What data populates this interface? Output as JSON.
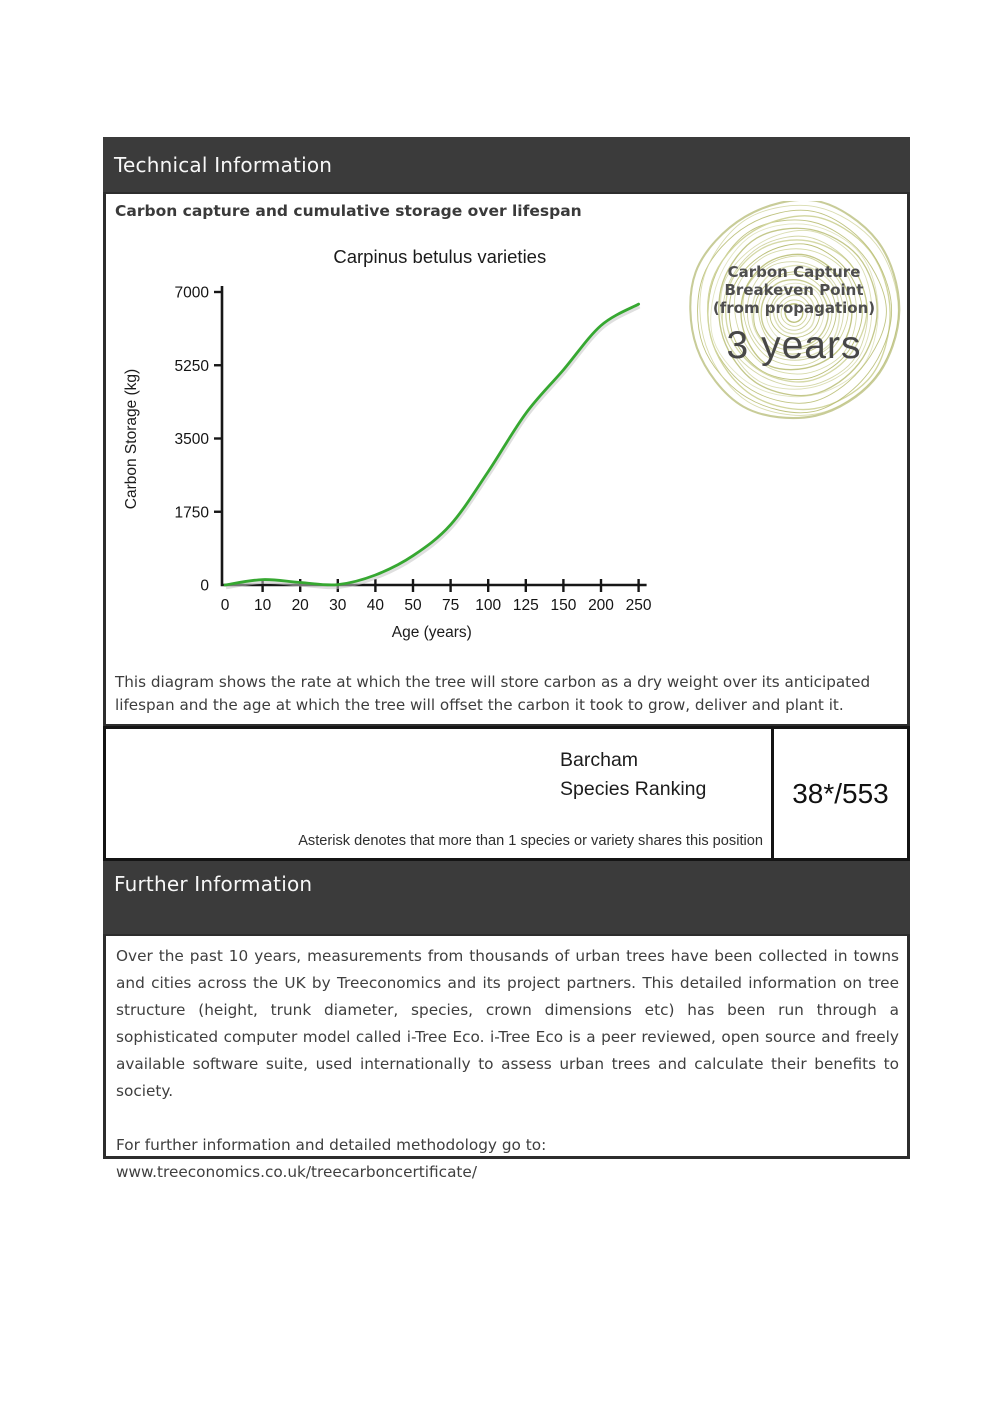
{
  "technical_section": {
    "title": "Technical Information",
    "bar_color": "#3b3b3b",
    "heading": "Carbon capture and cumulative storage over lifespan",
    "description": "This diagram shows the rate at which the tree will store carbon as a dry weight over its anticipated lifespan and the age at which the tree will offset the carbon it took to grow, deliver and plant it."
  },
  "chart_data": {
    "type": "line",
    "title": "Carpinus betulus varieties",
    "xlabel": "Age (years)",
    "ylabel": "Carbon Storage (kg)",
    "x_categories": [
      "0",
      "10",
      "20",
      "30",
      "40",
      "50",
      "75",
      "100",
      "125",
      "150",
      "200",
      "250"
    ],
    "x_spacing": "categorical-even",
    "y_ticks": [
      0,
      1750,
      3500,
      5250,
      7000
    ],
    "ylim": [
      0,
      7000
    ],
    "grid": false,
    "legend": "none",
    "series": [
      {
        "name": "Carpinus betulus varieties",
        "color": "#36a831",
        "values": [
          0,
          130,
          60,
          10,
          240,
          700,
          1440,
          2710,
          4100,
          5140,
          6200,
          6710
        ]
      }
    ]
  },
  "breakeven_badge": {
    "line1": "Carbon Capture",
    "line2": "Breakeven Point",
    "line3": "(from propagation)",
    "value": "3 years",
    "ring_color": "#b6bb6f",
    "ring_color_light": "#d0d49c"
  },
  "ranking": {
    "label_line1": "Barcham",
    "label_line2": "Species Ranking",
    "value": "38*/553",
    "footnote": "Asterisk denotes that more than 1 species or variety shares this position"
  },
  "further_section": {
    "title": "Further Information",
    "bar_color": "#3b3b3b",
    "paragraph": "Over the past 10 years, measurements from thousands of urban trees have been collected in towns and cities across the UK by Treeconomics and its project partners. This detailed information on tree structure (height, trunk diameter, species, crown dimensions etc) has been run through a sophisticated computer model called i-Tree Eco. i-Tree Eco is a peer reviewed, open source and freely available software suite, used internationally to assess urban trees and calculate their benefits to society.",
    "link_line": "For further information and detailed methodology go to: www.treeconomics.co.uk/treecarboncertificate/"
  }
}
